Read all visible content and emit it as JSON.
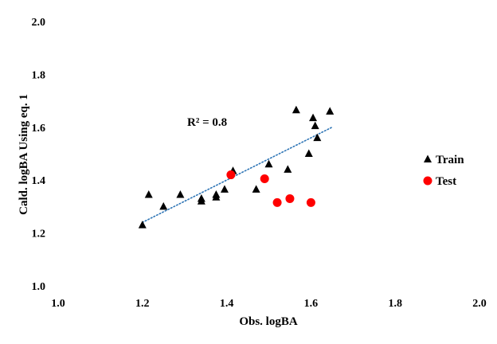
{
  "chart_data": {
    "type": "scatter",
    "xlabel": "Obs. logBA",
    "ylabel": "Cald. logBA  Using eq. 1",
    "xlim": [
      1.0,
      2.0
    ],
    "ylim": [
      1.0,
      2.0
    ],
    "x_ticks": [
      "1.0",
      "1.2",
      "1.4",
      "1.6",
      "1.8",
      "2.0"
    ],
    "y_ticks": [
      "1.0",
      "1.2",
      "1.4",
      "1.6",
      "1.8",
      "2.0"
    ],
    "grid": false,
    "legend_position": "right",
    "annotation": "R² = 0.8",
    "trendline": {
      "series": "Train",
      "style": "dotted",
      "color": "#2e75b6",
      "x": [
        1.2,
        1.65
      ],
      "y": [
        1.24,
        1.6
      ]
    },
    "series": [
      {
        "name": "Train",
        "marker": "triangle",
        "color": "#000000",
        "points": [
          {
            "x": 1.2,
            "y": 1.23
          },
          {
            "x": 1.215,
            "y": 1.345
          },
          {
            "x": 1.25,
            "y": 1.3
          },
          {
            "x": 1.29,
            "y": 1.345
          },
          {
            "x": 1.34,
            "y": 1.32
          },
          {
            "x": 1.34,
            "y": 1.33
          },
          {
            "x": 1.375,
            "y": 1.335
          },
          {
            "x": 1.375,
            "y": 1.345
          },
          {
            "x": 1.395,
            "y": 1.365
          },
          {
            "x": 1.415,
            "y": 1.435
          },
          {
            "x": 1.47,
            "y": 1.365
          },
          {
            "x": 1.5,
            "y": 1.46
          },
          {
            "x": 1.545,
            "y": 1.44
          },
          {
            "x": 1.565,
            "y": 1.665
          },
          {
            "x": 1.595,
            "y": 1.5
          },
          {
            "x": 1.605,
            "y": 1.635
          },
          {
            "x": 1.61,
            "y": 1.605
          },
          {
            "x": 1.615,
            "y": 1.56
          },
          {
            "x": 1.645,
            "y": 1.66
          }
        ]
      },
      {
        "name": "Test",
        "marker": "circle",
        "color": "#ff0000",
        "points": [
          {
            "x": 1.41,
            "y": 1.42
          },
          {
            "x": 1.49,
            "y": 1.405
          },
          {
            "x": 1.52,
            "y": 1.315
          },
          {
            "x": 1.55,
            "y": 1.33
          },
          {
            "x": 1.6,
            "y": 1.315
          }
        ]
      }
    ]
  }
}
